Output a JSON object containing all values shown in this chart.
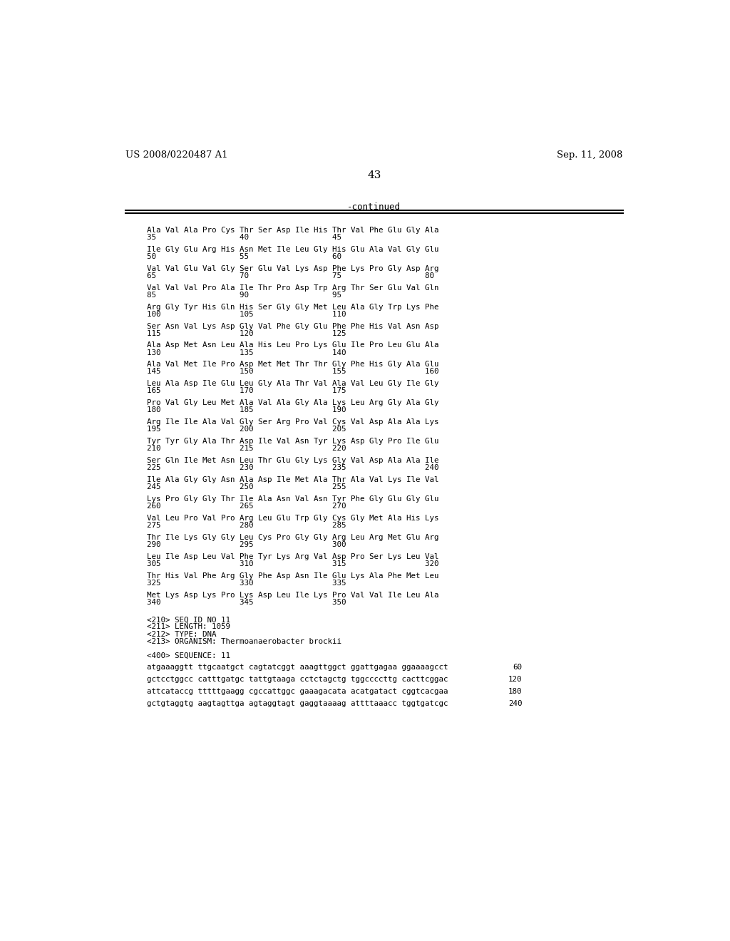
{
  "header_left": "US 2008/0220487 A1",
  "header_right": "Sep. 11, 2008",
  "page_number": "43",
  "continued_label": "-continued",
  "background_color": "#ffffff",
  "text_color": "#000000",
  "sequence_blocks": [
    {
      "seq": "Ala Val Ala Pro Cys Thr Ser Asp Ile His Thr Val Phe Glu Gly Ala",
      "nums": "35                  40                  45"
    },
    {
      "seq": "Ile Gly Glu Arg His Asn Met Ile Leu Gly His Glu Ala Val Gly Glu",
      "nums": "50                  55                  60"
    },
    {
      "seq": "Val Val Glu Val Gly Ser Glu Val Lys Asp Phe Lys Pro Gly Asp Arg",
      "nums": "65                  70                  75                  80"
    },
    {
      "seq": "Val Val Val Pro Ala Ile Thr Pro Asp Trp Arg Thr Ser Glu Val Gln",
      "nums": "85                  90                  95"
    },
    {
      "seq": "Arg Gly Tyr His Gln His Ser Gly Gly Met Leu Ala Gly Trp Lys Phe",
      "nums": "100                 105                 110"
    },
    {
      "seq": "Ser Asn Val Lys Asp Gly Val Phe Gly Glu Phe Phe His Val Asn Asp",
      "nums": "115                 120                 125"
    },
    {
      "seq": "Ala Asp Met Asn Leu Ala His Leu Pro Lys Glu Ile Pro Leu Glu Ala",
      "nums": "130                 135                 140"
    },
    {
      "seq": "Ala Val Met Ile Pro Asp Met Met Thr Thr Gly Phe His Gly Ala Glu",
      "nums": "145                 150                 155                 160"
    },
    {
      "seq": "Leu Ala Asp Ile Glu Leu Gly Ala Thr Val Ala Val Leu Gly Ile Gly",
      "nums": "165                 170                 175"
    },
    {
      "seq": "Pro Val Gly Leu Met Ala Val Ala Gly Ala Lys Leu Arg Gly Ala Gly",
      "nums": "180                 185                 190"
    },
    {
      "seq": "Arg Ile Ile Ala Val Gly Ser Arg Pro Val Cys Val Asp Ala Ala Lys",
      "nums": "195                 200                 205"
    },
    {
      "seq": "Tyr Tyr Gly Ala Thr Asp Ile Val Asn Tyr Lys Asp Gly Pro Ile Glu",
      "nums": "210                 215                 220"
    },
    {
      "seq": "Ser Gln Ile Met Asn Leu Thr Glu Gly Lys Gly Val Asp Ala Ala Ile",
      "nums": "225                 230                 235                 240"
    },
    {
      "seq": "Ile Ala Gly Gly Asn Ala Asp Ile Met Ala Thr Ala Val Lys Ile Val",
      "nums": "245                 250                 255"
    },
    {
      "seq": "Lys Pro Gly Gly Thr Ile Ala Asn Val Asn Tyr Phe Gly Glu Gly Glu",
      "nums": "260                 265                 270"
    },
    {
      "seq": "Val Leu Pro Val Pro Arg Leu Glu Trp Gly Cys Gly Met Ala His Lys",
      "nums": "275                 280                 285"
    },
    {
      "seq": "Thr Ile Lys Gly Gly Leu Cys Pro Gly Gly Arg Leu Arg Met Glu Arg",
      "nums": "290                 295                 300"
    },
    {
      "seq": "Leu Ile Asp Leu Val Phe Tyr Lys Arg Val Asp Pro Ser Lys Leu Val",
      "nums": "305                 310                 315                 320"
    },
    {
      "seq": "Thr His Val Phe Arg Gly Phe Asp Asn Ile Glu Lys Ala Phe Met Leu",
      "nums": "325                 330                 335"
    },
    {
      "seq": "Met Lys Asp Lys Pro Lys Asp Leu Ile Lys Pro Val Val Ile Leu Ala",
      "nums": "340                 345                 350"
    }
  ],
  "seq_id_block": [
    "<210> SEQ ID NO 11",
    "<211> LENGTH: 1059",
    "<212> TYPE: DNA",
    "<213> ORGANISM: Thermoanaerobacter brockii"
  ],
  "seq400_label": "<400> SEQUENCE: 11",
  "dna_lines": [
    {
      "seq": "atgaaaggtt ttgcaatgct cagtatcggt aaagttggct ggattgagaa ggaaaagcct",
      "num": "60"
    },
    {
      "seq": "gctcctggcc catttgatgc tattgtaaga cctctagctg tggccccttg cacttcggac",
      "num": "120"
    },
    {
      "seq": "attcataccg tttttgaagg cgccattggc gaaagacata acatgatact cggtcacgaa",
      "num": "180"
    },
    {
      "seq": "gctgtaggtg aagtagttga agtaggtagt gaggtaaaag attttaaacc tggtgatcgc",
      "num": "240"
    }
  ]
}
